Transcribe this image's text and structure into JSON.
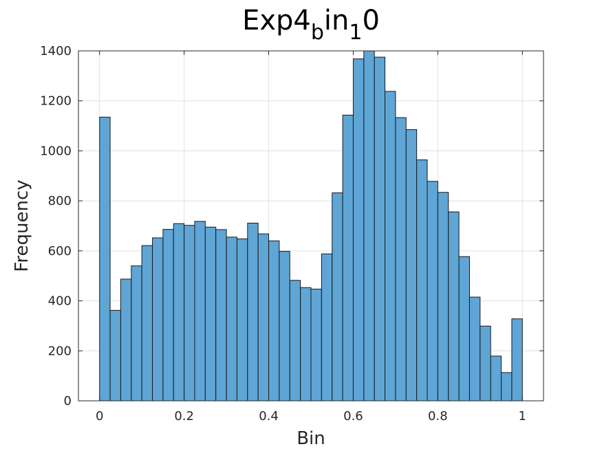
{
  "chart_data": {
    "type": "bar",
    "title": "Exp4",
    "title_parts": [
      {
        "text": "Exp4",
        "sub": false
      },
      {
        "text": "b",
        "sub": true
      },
      {
        "text": "in",
        "sub": false
      },
      {
        "text": "1",
        "sub": true
      },
      {
        "text": "0",
        "sub": false
      }
    ],
    "xlabel": "Bin",
    "ylabel": "Frequency",
    "xlim": [
      -0.05,
      1.05
    ],
    "ylim": [
      0,
      1400
    ],
    "xticks": [
      0,
      0.2,
      0.4,
      0.6,
      0.8,
      1
    ],
    "xtick_labels": [
      "0",
      "0.2",
      "0.4",
      "0.6",
      "0.8",
      "1"
    ],
    "yticks": [
      0,
      200,
      400,
      600,
      800,
      1000,
      1200,
      1400
    ],
    "ytick_labels": [
      "0",
      "200",
      "400",
      "600",
      "800",
      "1000",
      "1200",
      "1400"
    ],
    "grid": true,
    "bin_width": 0.025,
    "bin_start": 0,
    "values": [
      1135,
      362,
      487,
      540,
      621,
      652,
      686,
      709,
      702,
      718,
      695,
      685,
      655,
      648,
      711,
      668,
      640,
      598,
      482,
      453,
      447,
      588,
      832,
      1143,
      1368,
      1400,
      1375,
      1238,
      1133,
      1085,
      964,
      878,
      834,
      756,
      577,
      415,
      299,
      179,
      113,
      328
    ],
    "colors": {
      "face": "#5FA5D5",
      "edge": "#1A1A1A",
      "grid": "#E0E0E0",
      "axis": "#262626"
    }
  }
}
